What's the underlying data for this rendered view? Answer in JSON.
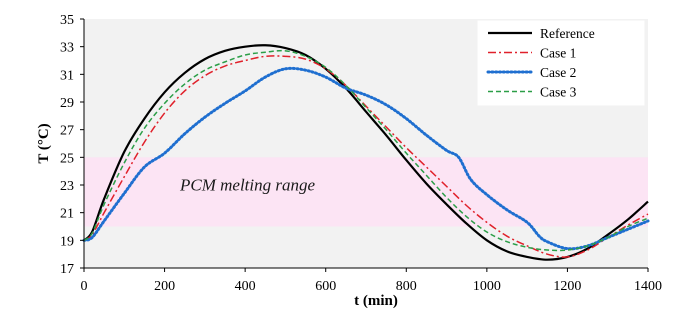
{
  "chart_data": {
    "type": "line",
    "title": "",
    "xlabel": "t (min)",
    "ylabel": "T (°C)",
    "xlim": [
      0,
      1400
    ],
    "ylim": [
      17,
      35
    ],
    "xticks": [
      0,
      200,
      400,
      600,
      800,
      1000,
      1200,
      1400
    ],
    "yticks": [
      17,
      19,
      21,
      23,
      25,
      27,
      29,
      31,
      33,
      35
    ],
    "plot_background": "#f2f2f2",
    "legend_position": "top-right",
    "band": {
      "y0": 20,
      "y1": 25,
      "label": "PCM melting range",
      "color": "#fce4f4"
    },
    "series": [
      {
        "name": "Reference",
        "color": "#000000",
        "dash": "solid",
        "x": [
          0,
          20,
          50,
          100,
          150,
          200,
          250,
          300,
          350,
          400,
          450,
          500,
          550,
          600,
          650,
          700,
          750,
          800,
          850,
          900,
          950,
          1000,
          1050,
          1100,
          1150,
          1200,
          1250,
          1300,
          1350,
          1400
        ],
        "y": [
          19.0,
          19.6,
          22.0,
          25.4,
          27.8,
          29.7,
          31.1,
          32.1,
          32.7,
          33.0,
          33.1,
          32.9,
          32.4,
          31.4,
          30.0,
          28.3,
          26.6,
          24.8,
          23.1,
          21.6,
          20.2,
          19.0,
          18.2,
          17.8,
          17.6,
          17.8,
          18.4,
          19.4,
          20.5,
          21.8
        ]
      },
      {
        "name": "Case 1",
        "color": "#e0212b",
        "dash": "dashdot",
        "x": [
          0,
          20,
          50,
          100,
          150,
          200,
          250,
          300,
          350,
          400,
          450,
          500,
          550,
          600,
          650,
          700,
          750,
          800,
          850,
          900,
          950,
          1000,
          1050,
          1100,
          1150,
          1200,
          1250,
          1300,
          1350,
          1400
        ],
        "y": [
          19.0,
          19.4,
          21.0,
          23.6,
          26.1,
          28.2,
          29.8,
          30.9,
          31.6,
          32.0,
          32.3,
          32.3,
          32.1,
          31.4,
          30.2,
          28.7,
          27.2,
          25.7,
          24.3,
          22.9,
          21.5,
          20.3,
          19.3,
          18.6,
          18.0,
          17.8,
          18.3,
          19.2,
          20.1,
          20.9
        ]
      },
      {
        "name": "Case 2",
        "color": "#1f6fd0",
        "dash": "dotted",
        "x": [
          0,
          20,
          50,
          100,
          150,
          200,
          250,
          300,
          350,
          400,
          450,
          500,
          550,
          600,
          650,
          700,
          750,
          800,
          850,
          900,
          930,
          960,
          1000,
          1050,
          1100,
          1130,
          1150,
          1200,
          1250,
          1300,
          1350,
          1400
        ],
        "y": [
          19.0,
          19.2,
          20.4,
          22.4,
          24.3,
          25.3,
          26.7,
          27.9,
          28.9,
          29.8,
          30.8,
          31.4,
          31.3,
          30.8,
          30.0,
          29.5,
          28.8,
          27.8,
          26.6,
          25.5,
          25.0,
          23.4,
          22.3,
          21.2,
          20.3,
          19.3,
          18.9,
          18.4,
          18.6,
          19.2,
          19.8,
          20.4
        ]
      },
      {
        "name": "Case 3",
        "color": "#2b9e47",
        "dash": "dashed",
        "x": [
          0,
          20,
          50,
          100,
          150,
          200,
          250,
          300,
          350,
          400,
          450,
          500,
          550,
          600,
          650,
          700,
          750,
          800,
          850,
          900,
          950,
          1000,
          1050,
          1100,
          1150,
          1200,
          1250,
          1300,
          1350,
          1400
        ],
        "y": [
          19.0,
          19.5,
          21.6,
          24.6,
          27.1,
          28.9,
          30.3,
          31.3,
          31.9,
          32.4,
          32.6,
          32.7,
          32.3,
          31.5,
          30.2,
          28.6,
          27.0,
          25.3,
          23.7,
          22.1,
          20.7,
          19.6,
          18.9,
          18.5,
          18.3,
          18.3,
          18.6,
          19.2,
          20.0,
          20.6
        ]
      }
    ]
  }
}
